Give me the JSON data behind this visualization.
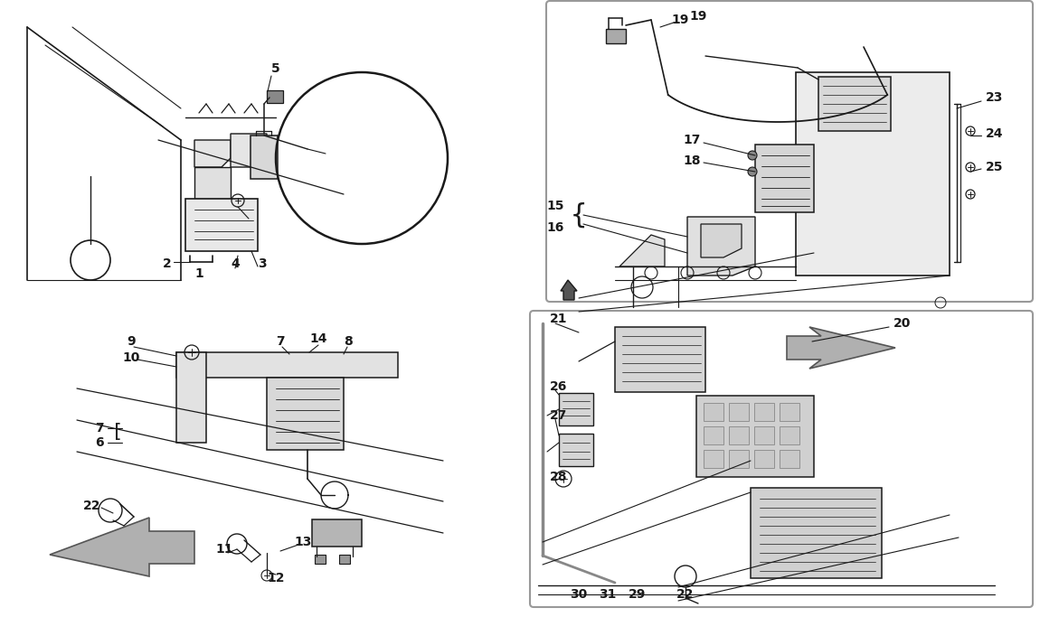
{
  "bg_color": "#ffffff",
  "line_color": "#1a1a1a",
  "text_color": "#1a1a1a",
  "divider_color": "#888888",
  "panel_border_color": "#aaaaaa",
  "fig_width": 11.5,
  "fig_height": 6.83,
  "dpi": 100
}
